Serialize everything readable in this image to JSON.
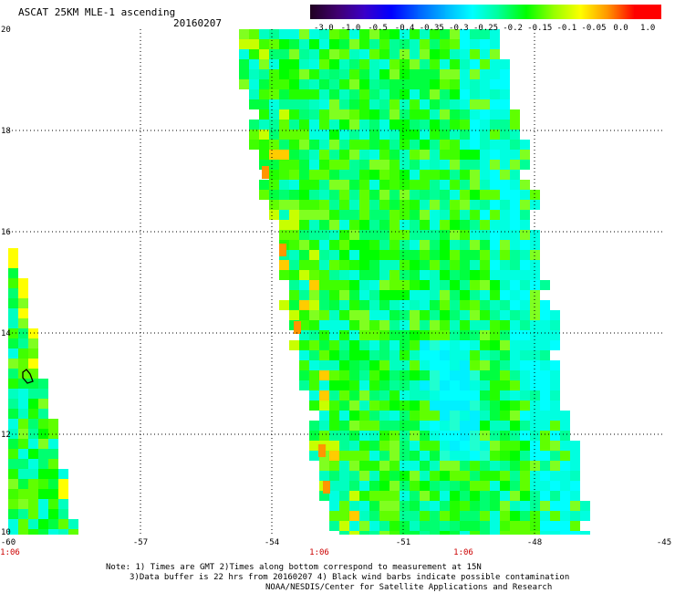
{
  "header": {
    "title": "ASCAT 25KM MLE-1 ascending",
    "date": "20160207"
  },
  "colorbar": {
    "labels": [
      "-3.0",
      "-1.0",
      "-0.5",
      "-0.4",
      "-0.35",
      "-0.3",
      "-0.25",
      "-0.2",
      "-0.15",
      "-0.1",
      "-0.05",
      "0.0",
      "1.0"
    ],
    "colors": [
      "#200020",
      "#400070",
      "#3a00c8",
      "#0000ff",
      "#0060ff",
      "#00b4ff",
      "#00ffff",
      "#00ff96",
      "#00ff00",
      "#96ff00",
      "#ffff00",
      "#ff9600",
      "#ff0000"
    ]
  },
  "map": {
    "y_labels": [
      "20",
      "18",
      "16",
      "14",
      "12",
      "10"
    ],
    "x_labels": [
      "-60",
      "-57",
      "-54",
      "-51",
      "-48",
      "-45"
    ],
    "time_labels": [
      "1:06",
      "1:06",
      "1:06"
    ],
    "lat_range": [
      10,
      20
    ],
    "lon_range": [
      -60,
      -45
    ]
  },
  "notes": {
    "line1": "Note: 1) Times are GMT 2)Times along bottom correspond to measurement at 15N",
    "line2": "3)Data buffer is 22 hrs from 20160207 4) Black wind barbs indicate possible contamination",
    "line3": "NOAA/NESDIS/Center for Satellite Applications and Research"
  }
}
